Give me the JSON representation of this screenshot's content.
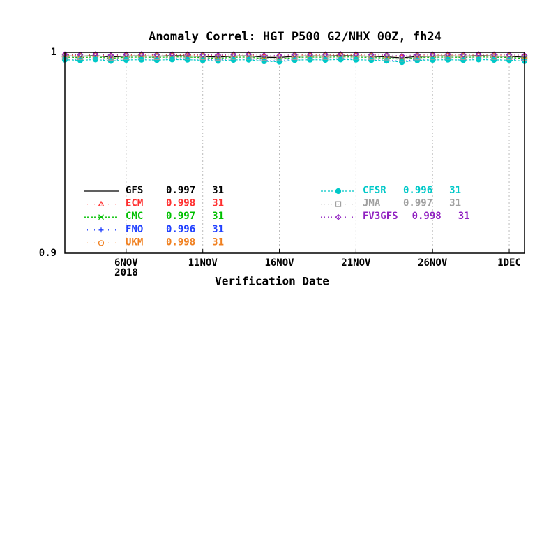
{
  "chart_data": {
    "type": "line",
    "title": "Anomaly Correl: HGT P500 G2/NHX 00Z, fh24",
    "x_label": "Verification Date",
    "year_label": "2018",
    "x": [
      "2018-11-02",
      "2018-11-03",
      "2018-11-04",
      "2018-11-05",
      "2018-11-06",
      "2018-11-07",
      "2018-11-08",
      "2018-11-09",
      "2018-11-10",
      "2018-11-11",
      "2018-11-12",
      "2018-11-13",
      "2018-11-14",
      "2018-11-15",
      "2018-11-16",
      "2018-11-17",
      "2018-11-18",
      "2018-11-19",
      "2018-11-20",
      "2018-11-21",
      "2018-11-22",
      "2018-11-23",
      "2018-11-24",
      "2018-11-25",
      "2018-11-26",
      "2018-11-27",
      "2018-11-28",
      "2018-11-29",
      "2018-11-30",
      "2018-12-01",
      "2018-12-02"
    ],
    "xlim": [
      "2018-11-02",
      "2018-12-02"
    ],
    "xticks": [
      {
        "value": "2018-11-06",
        "label": "6NOV"
      },
      {
        "value": "2018-11-11",
        "label": "11NOV"
      },
      {
        "value": "2018-11-16",
        "label": "16NOV"
      },
      {
        "value": "2018-11-21",
        "label": "21NOV"
      },
      {
        "value": "2018-11-26",
        "label": "26NOV"
      },
      {
        "value": "2018-12-01",
        "label": "1DEC"
      }
    ],
    "ylim": [
      0.9,
      1
    ],
    "yticks": [
      0.9,
      1
    ],
    "grid": "x",
    "series": [
      {
        "name": "GFS",
        "color": "#000000",
        "dash": "solid",
        "marker": "none",
        "mean": 0.997,
        "count": 31,
        "values": [
          0.9982,
          0.998,
          0.9983,
          0.9976,
          0.9981,
          0.9982,
          0.998,
          0.9983,
          0.9982,
          0.9979,
          0.9976,
          0.9981,
          0.9982,
          0.9975,
          0.9974,
          0.998,
          0.9982,
          0.9981,
          0.9983,
          0.9982,
          0.998,
          0.9977,
          0.9972,
          0.9979,
          0.9981,
          0.9982,
          0.998,
          0.9983,
          0.9981,
          0.998,
          0.9975
        ]
      },
      {
        "name": "ECM",
        "color": "#ff3030",
        "dash": "dot",
        "marker": "triangle",
        "mean": 0.998,
        "count": 31,
        "values": [
          0.9988,
          0.9987,
          0.9989,
          0.9984,
          0.9988,
          0.9989,
          0.9987,
          0.9989,
          0.9988,
          0.9987,
          0.9984,
          0.9988,
          0.9989,
          0.9983,
          0.9982,
          0.9987,
          0.9989,
          0.9988,
          0.9989,
          0.9989,
          0.9987,
          0.9985,
          0.998,
          0.9986,
          0.9988,
          0.9989,
          0.9987,
          0.9989,
          0.9988,
          0.9987,
          0.9983
        ]
      },
      {
        "name": "CMC",
        "color": "#00c000",
        "dash": "dash",
        "marker": "x",
        "mean": 0.997,
        "count": 31,
        "values": [
          0.9976,
          0.9973,
          0.9977,
          0.997,
          0.9975,
          0.9976,
          0.9974,
          0.9977,
          0.9976,
          0.9973,
          0.997,
          0.9975,
          0.9976,
          0.9968,
          0.9966,
          0.9974,
          0.9976,
          0.9975,
          0.9977,
          0.9976,
          0.9974,
          0.9971,
          0.9965,
          0.9973,
          0.9975,
          0.9976,
          0.9974,
          0.9977,
          0.9975,
          0.9974,
          0.9969
        ]
      },
      {
        "name": "FNO",
        "color": "#2040ff",
        "dash": "dot",
        "marker": "plus",
        "mean": 0.996,
        "count": 31,
        "values": [
          0.9968,
          0.9965,
          0.9969,
          0.9962,
          0.9967,
          0.9968,
          0.9966,
          0.9969,
          0.9968,
          0.9965,
          0.9962,
          0.9967,
          0.9968,
          0.996,
          0.9958,
          0.9966,
          0.9968,
          0.9967,
          0.9969,
          0.9968,
          0.9966,
          0.9963,
          0.9955,
          0.9965,
          0.9967,
          0.9968,
          0.9966,
          0.9969,
          0.9967,
          0.9966,
          0.9961
        ]
      },
      {
        "name": "UKM",
        "color": "#f08020",
        "dash": "dot",
        "marker": "circle",
        "mean": 0.998,
        "count": 31,
        "values": [
          0.9986,
          0.9984,
          0.9987,
          0.9981,
          0.9985,
          0.9986,
          0.9984,
          0.9987,
          0.9986,
          0.9984,
          0.9981,
          0.9985,
          0.9986,
          0.998,
          0.9979,
          0.9984,
          0.9986,
          0.9985,
          0.9987,
          0.9986,
          0.9984,
          0.9982,
          0.9977,
          0.9983,
          0.9985,
          0.9986,
          0.9984,
          0.9987,
          0.9985,
          0.9984,
          0.998
        ]
      },
      {
        "name": "CFSR",
        "color": "#00c8c8",
        "dash": "dash",
        "marker": "dot",
        "mean": 0.996,
        "count": 31,
        "values": [
          0.9963,
          0.996,
          0.9964,
          0.9957,
          0.9962,
          0.9963,
          0.9961,
          0.9964,
          0.9963,
          0.996,
          0.9957,
          0.9962,
          0.9963,
          0.9955,
          0.9953,
          0.9961,
          0.9963,
          0.9962,
          0.9964,
          0.9963,
          0.9961,
          0.9958,
          0.9951,
          0.996,
          0.9962,
          0.9963,
          0.9961,
          0.9964,
          0.9962,
          0.9961,
          0.9956
        ]
      },
      {
        "name": "JMA",
        "color": "#a0a0a0",
        "dash": "dot",
        "marker": "square",
        "mean": 0.997,
        "count": 31,
        "values": [
          0.9978,
          0.9976,
          0.9979,
          0.9973,
          0.9977,
          0.9978,
          0.9976,
          0.9979,
          0.9978,
          0.9976,
          0.9973,
          0.9977,
          0.9978,
          0.9971,
          0.997,
          0.9976,
          0.9978,
          0.9977,
          0.9979,
          0.9978,
          0.9976,
          0.9974,
          0.9968,
          0.9975,
          0.9977,
          0.9978,
          0.9976,
          0.9979,
          0.9977,
          0.9976,
          0.9972
        ]
      },
      {
        "name": "FV3GFS",
        "color": "#9020c0",
        "dash": "dot",
        "marker": "diamond",
        "mean": 0.998,
        "count": 31,
        "values": [
          0.999,
          0.9989,
          0.9991,
          0.9986,
          0.999,
          0.9991,
          0.9989,
          0.9991,
          0.999,
          0.9989,
          0.9986,
          0.999,
          0.9991,
          0.9985,
          0.9984,
          0.9989,
          0.9991,
          0.999,
          0.9991,
          0.9991,
          0.9989,
          0.9987,
          0.9982,
          0.9988,
          0.999,
          0.9991,
          0.9989,
          0.9991,
          0.999,
          0.9989,
          0.9985
        ]
      }
    ]
  }
}
